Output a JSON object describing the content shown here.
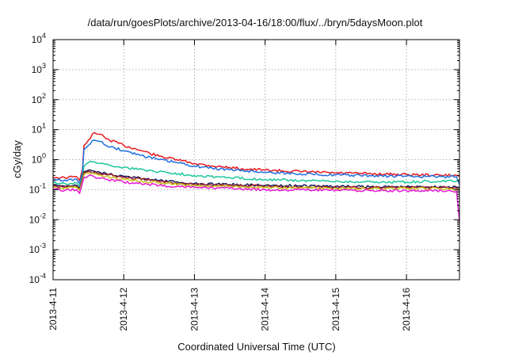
{
  "chart_data": {
    "type": "line",
    "title": "/data/run/goesPlots/archive/2013-04-16/18:00/flux/../bryn/5daysMoon.plot",
    "xlabel": "Coordinated Universal Time (UTC)",
    "ylabel": "cGy/day",
    "yscale": "log",
    "ylim_exponents": [
      -4,
      4
    ],
    "y_tick_labels": [
      {
        "base": "10",
        "exp": "-4"
      },
      {
        "base": "10",
        "exp": "-3"
      },
      {
        "base": "10",
        "exp": "-2"
      },
      {
        "base": "10",
        "exp": "-1"
      },
      {
        "base": "10",
        "exp": "0"
      },
      {
        "base": "10",
        "exp": "1"
      },
      {
        "base": "10",
        "exp": "2"
      },
      {
        "base": "10",
        "exp": "3"
      },
      {
        "base": "10",
        "exp": "4"
      }
    ],
    "xlim": [
      "2013-04-11 00:00",
      "2013-04-16 18:00"
    ],
    "x_tick_labels": [
      "2013-4-11",
      "2013-4-12",
      "2013-4-13",
      "2013-4-14",
      "2013-4-15",
      "2013-4-16"
    ],
    "grid": true,
    "legend": "none",
    "series": [
      {
        "color": "#e8191e",
        "points": [
          [
            "2013-04-11 00:00",
            0.26
          ],
          [
            "2013-04-11 04:00",
            0.25
          ],
          [
            "2013-04-11 08:00",
            0.27
          ],
          [
            "2013-04-11 09:00",
            0.2
          ],
          [
            "2013-04-11 10:00",
            0.5
          ],
          [
            "2013-04-11 10:30",
            3.0
          ],
          [
            "2013-04-11 12:00",
            4.5
          ],
          [
            "2013-04-11 14:00",
            8.0
          ],
          [
            "2013-04-11 16:00",
            7.0
          ],
          [
            "2013-04-11 18:00",
            5.0
          ],
          [
            "2013-04-12 00:00",
            3.0
          ],
          [
            "2013-04-12 06:00",
            2.0
          ],
          [
            "2013-04-12 12:00",
            1.3
          ],
          [
            "2013-04-12 18:00",
            1.0
          ],
          [
            "2013-04-13 00:00",
            0.75
          ],
          [
            "2013-04-13 06:00",
            0.62
          ],
          [
            "2013-04-13 12:00",
            0.55
          ],
          [
            "2013-04-13 18:00",
            0.48
          ],
          [
            "2013-04-14 00:00",
            0.45
          ],
          [
            "2013-04-14 12:00",
            0.4
          ],
          [
            "2013-04-15 00:00",
            0.36
          ],
          [
            "2013-04-15 12:00",
            0.34
          ],
          [
            "2013-04-16 00:00",
            0.32
          ],
          [
            "2013-04-16 12:00",
            0.3
          ],
          [
            "2013-04-16 17:00",
            0.3
          ],
          [
            "2013-04-16 18:00",
            0.28
          ]
        ]
      },
      {
        "color": "#1f6fe0",
        "points": [
          [
            "2013-04-11 00:00",
            0.22
          ],
          [
            "2013-04-11 04:00",
            0.21
          ],
          [
            "2013-04-11 08:00",
            0.22
          ],
          [
            "2013-04-11 09:00",
            0.16
          ],
          [
            "2013-04-11 10:00",
            0.4
          ],
          [
            "2013-04-11 10:30",
            2.2
          ],
          [
            "2013-04-11 12:00",
            3.0
          ],
          [
            "2013-04-11 14:00",
            4.5
          ],
          [
            "2013-04-11 16:00",
            4.0
          ],
          [
            "2013-04-11 18:00",
            3.0
          ],
          [
            "2013-04-12 00:00",
            2.0
          ],
          [
            "2013-04-12 06:00",
            1.4
          ],
          [
            "2013-04-12 12:00",
            1.0
          ],
          [
            "2013-04-12 18:00",
            0.8
          ],
          [
            "2013-04-13 00:00",
            0.62
          ],
          [
            "2013-04-13 06:00",
            0.52
          ],
          [
            "2013-04-13 12:00",
            0.46
          ],
          [
            "2013-04-13 18:00",
            0.42
          ],
          [
            "2013-04-14 00:00",
            0.38
          ],
          [
            "2013-04-14 12:00",
            0.34
          ],
          [
            "2013-04-15 00:00",
            0.31
          ],
          [
            "2013-04-15 12:00",
            0.29
          ],
          [
            "2013-04-16 00:00",
            0.28
          ],
          [
            "2013-04-16 12:00",
            0.27
          ],
          [
            "2013-04-16 17:00",
            0.27
          ],
          [
            "2013-04-16 18:00",
            0.15
          ]
        ]
      },
      {
        "color": "#1ec79a",
        "points": [
          [
            "2013-04-11 00:00",
            0.17
          ],
          [
            "2013-04-11 04:00",
            0.16
          ],
          [
            "2013-04-11 08:00",
            0.17
          ],
          [
            "2013-04-11 09:00",
            0.13
          ],
          [
            "2013-04-11 10:00",
            0.3
          ],
          [
            "2013-04-11 10:30",
            0.6
          ],
          [
            "2013-04-11 12:00",
            0.8
          ],
          [
            "2013-04-11 14:00",
            0.85
          ],
          [
            "2013-04-11 18:00",
            0.7
          ],
          [
            "2013-04-12 00:00",
            0.55
          ],
          [
            "2013-04-12 12:00",
            0.4
          ],
          [
            "2013-04-13 00:00",
            0.3
          ],
          [
            "2013-04-13 12:00",
            0.25
          ],
          [
            "2013-04-14 00:00",
            0.22
          ],
          [
            "2013-04-14 12:00",
            0.2
          ],
          [
            "2013-04-15 00:00",
            0.19
          ],
          [
            "2013-04-15 12:00",
            0.18
          ],
          [
            "2013-04-16 00:00",
            0.18
          ],
          [
            "2013-04-16 12:00",
            0.19
          ],
          [
            "2013-04-16 18:00",
            0.2
          ]
        ]
      },
      {
        "color": "#1b1b5e",
        "points": [
          [
            "2013-04-11 00:00",
            0.14
          ],
          [
            "2013-04-11 04:00",
            0.13
          ],
          [
            "2013-04-11 08:00",
            0.14
          ],
          [
            "2013-04-11 09:00",
            0.11
          ],
          [
            "2013-04-11 10:00",
            0.25
          ],
          [
            "2013-04-11 10:30",
            0.4
          ],
          [
            "2013-04-11 12:00",
            0.45
          ],
          [
            "2013-04-11 14:00",
            0.42
          ],
          [
            "2013-04-11 18:00",
            0.35
          ],
          [
            "2013-04-12 00:00",
            0.28
          ],
          [
            "2013-04-12 12:00",
            0.2
          ],
          [
            "2013-04-13 00:00",
            0.16
          ],
          [
            "2013-04-13 12:00",
            0.15
          ],
          [
            "2013-04-14 00:00",
            0.14
          ],
          [
            "2013-04-14 12:00",
            0.135
          ],
          [
            "2013-04-15 00:00",
            0.13
          ],
          [
            "2013-04-15 12:00",
            0.125
          ],
          [
            "2013-04-16 00:00",
            0.125
          ],
          [
            "2013-04-16 12:00",
            0.125
          ],
          [
            "2013-04-16 18:00",
            0.12
          ]
        ]
      },
      {
        "color": "#9a1e2a",
        "points": [
          [
            "2013-04-11 00:00",
            0.13
          ],
          [
            "2013-04-11 04:00",
            0.125
          ],
          [
            "2013-04-11 08:00",
            0.13
          ],
          [
            "2013-04-11 09:00",
            0.1
          ],
          [
            "2013-04-11 10:00",
            0.23
          ],
          [
            "2013-04-11 10:30",
            0.37
          ],
          [
            "2013-04-11 12:00",
            0.41
          ],
          [
            "2013-04-11 14:00",
            0.38
          ],
          [
            "2013-04-11 18:00",
            0.32
          ],
          [
            "2013-04-12 00:00",
            0.26
          ],
          [
            "2013-04-12 12:00",
            0.19
          ],
          [
            "2013-04-13 00:00",
            0.15
          ],
          [
            "2013-04-13 12:00",
            0.14
          ],
          [
            "2013-04-14 00:00",
            0.13
          ],
          [
            "2013-04-14 12:00",
            0.125
          ],
          [
            "2013-04-15 00:00",
            0.12
          ],
          [
            "2013-04-15 12:00",
            0.118
          ],
          [
            "2013-04-16 00:00",
            0.118
          ],
          [
            "2013-04-16 12:00",
            0.118
          ],
          [
            "2013-04-16 18:00",
            0.11
          ]
        ]
      },
      {
        "color": "#c9c21a",
        "points": [
          [
            "2013-04-11 00:00",
            0.12
          ],
          [
            "2013-04-11 04:00",
            0.115
          ],
          [
            "2013-04-11 08:00",
            0.12
          ],
          [
            "2013-04-11 09:00",
            0.095
          ],
          [
            "2013-04-11 10:00",
            0.2
          ],
          [
            "2013-04-11 10:30",
            0.32
          ],
          [
            "2013-04-11 12:00",
            0.36
          ],
          [
            "2013-04-11 14:00",
            0.33
          ],
          [
            "2013-04-11 18:00",
            0.28
          ],
          [
            "2013-04-12 00:00",
            0.22
          ],
          [
            "2013-04-12 12:00",
            0.17
          ],
          [
            "2013-04-13 00:00",
            0.14
          ],
          [
            "2013-04-13 12:00",
            0.13
          ],
          [
            "2013-04-14 00:00",
            0.12
          ],
          [
            "2013-04-14 12:00",
            0.115
          ],
          [
            "2013-04-15 00:00",
            0.11
          ],
          [
            "2013-04-15 12:00",
            0.108
          ],
          [
            "2013-04-16 00:00",
            0.108
          ],
          [
            "2013-04-16 12:00",
            0.108
          ],
          [
            "2013-04-16 18:00",
            0.1
          ]
        ]
      },
      {
        "color": "#e619d8",
        "points": [
          [
            "2013-04-11 00:00",
            0.1
          ],
          [
            "2013-04-11 04:00",
            0.095
          ],
          [
            "2013-04-11 08:00",
            0.1
          ],
          [
            "2013-04-11 09:00",
            0.075
          ],
          [
            "2013-04-11 10:00",
            0.17
          ],
          [
            "2013-04-11 10:30",
            0.26
          ],
          [
            "2013-04-11 12:00",
            0.29
          ],
          [
            "2013-04-11 14:00",
            0.27
          ],
          [
            "2013-04-11 18:00",
            0.22
          ],
          [
            "2013-04-12 00:00",
            0.18
          ],
          [
            "2013-04-12 12:00",
            0.14
          ],
          [
            "2013-04-13 00:00",
            0.12
          ],
          [
            "2013-04-13 12:00",
            0.11
          ],
          [
            "2013-04-14 00:00",
            0.1
          ],
          [
            "2013-04-14 12:00",
            0.098
          ],
          [
            "2013-04-15 00:00",
            0.095
          ],
          [
            "2013-04-15 12:00",
            0.093
          ],
          [
            "2013-04-16 00:00",
            0.093
          ],
          [
            "2013-04-16 12:00",
            0.092
          ],
          [
            "2013-04-16 17:00",
            0.09
          ],
          [
            "2013-04-16 18:00",
            0.009
          ]
        ]
      }
    ]
  }
}
